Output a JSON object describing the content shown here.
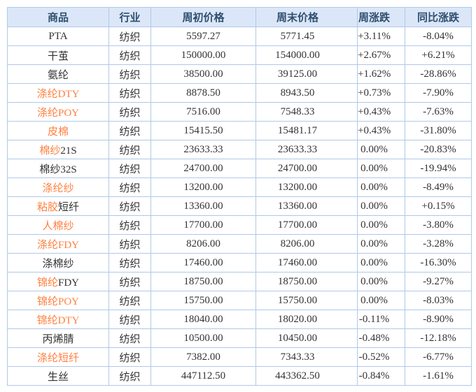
{
  "colors": {
    "up_red": "#e60000",
    "down_green": "#008800",
    "flat_text": "#333333",
    "product_link_orange": "#ff8040",
    "header_text": "#2f4f6f",
    "header_bg": "#dbe7f8",
    "grid_border": "#b0c9e8"
  },
  "table": {
    "columns": [
      {
        "label": "商品"
      },
      {
        "label": "行业"
      },
      {
        "label": "周初价格"
      },
      {
        "label": "周末价格"
      },
      {
        "label": "周涨跌"
      },
      {
        "label": "同比涨跌"
      }
    ],
    "rows": [
      {
        "name": [
          {
            "text": "PTA",
            "style": "plain"
          }
        ],
        "industry": "纺织",
        "start": "5597.27",
        "end": "5771.45",
        "week": {
          "text": "+3.11%",
          "style": "up"
        },
        "yoy": {
          "text": "-8.04%",
          "style": "down"
        }
      },
      {
        "name": [
          {
            "text": "干茧",
            "style": "plain"
          }
        ],
        "industry": "纺织",
        "start": "150000.00",
        "end": "154000.00",
        "week": {
          "text": "+2.67%",
          "style": "up"
        },
        "yoy": {
          "text": "+6.21%",
          "style": "up"
        }
      },
      {
        "name": [
          {
            "text": "氨纶",
            "style": "plain"
          }
        ],
        "industry": "纺织",
        "start": "38500.00",
        "end": "39125.00",
        "week": {
          "text": "+1.62%",
          "style": "up"
        },
        "yoy": {
          "text": "-28.86%",
          "style": "down"
        }
      },
      {
        "name": [
          {
            "text": "涤纶DTY",
            "style": "link"
          }
        ],
        "industry": "纺织",
        "start": "8878.50",
        "end": "8943.50",
        "week": {
          "text": "+0.73%",
          "style": "up"
        },
        "yoy": {
          "text": "-7.90%",
          "style": "down"
        }
      },
      {
        "name": [
          {
            "text": "涤纶POY",
            "style": "link"
          }
        ],
        "industry": "纺织",
        "start": "7516.00",
        "end": "7548.33",
        "week": {
          "text": "+0.43%",
          "style": "up"
        },
        "yoy": {
          "text": "-7.63%",
          "style": "down"
        }
      },
      {
        "name": [
          {
            "text": "皮棉",
            "style": "link"
          }
        ],
        "industry": "纺织",
        "start": "15415.50",
        "end": "15481.17",
        "week": {
          "text": "+0.43%",
          "style": "up"
        },
        "yoy": {
          "text": "-31.80%",
          "style": "down"
        }
      },
      {
        "name": [
          {
            "text": "棉纱",
            "style": "link"
          },
          {
            "text": "21S",
            "style": "plain"
          }
        ],
        "industry": "纺织",
        "start": "23633.33",
        "end": "23633.33",
        "week": {
          "text": "0.00%",
          "style": "flat"
        },
        "yoy": {
          "text": "-20.83%",
          "style": "down"
        }
      },
      {
        "name": [
          {
            "text": "棉纱32S",
            "style": "plain"
          }
        ],
        "industry": "纺织",
        "start": "24700.00",
        "end": "24700.00",
        "week": {
          "text": "0.00%",
          "style": "flat"
        },
        "yoy": {
          "text": "-19.94%",
          "style": "down"
        }
      },
      {
        "name": [
          {
            "text": "涤纶纱",
            "style": "link"
          }
        ],
        "industry": "纺织",
        "start": "13200.00",
        "end": "13200.00",
        "week": {
          "text": "0.00%",
          "style": "flat"
        },
        "yoy": {
          "text": "-8.49%",
          "style": "down"
        }
      },
      {
        "name": [
          {
            "text": "粘胶",
            "style": "link"
          },
          {
            "text": "短纤",
            "style": "plain"
          }
        ],
        "industry": "纺织",
        "start": "13360.00",
        "end": "13360.00",
        "week": {
          "text": "0.00%",
          "style": "flat"
        },
        "yoy": {
          "text": "+0.15%",
          "style": "up"
        }
      },
      {
        "name": [
          {
            "text": "人棉纱",
            "style": "link"
          }
        ],
        "industry": "纺织",
        "start": "17700.00",
        "end": "17700.00",
        "week": {
          "text": "0.00%",
          "style": "flat"
        },
        "yoy": {
          "text": "-3.80%",
          "style": "down"
        }
      },
      {
        "name": [
          {
            "text": "涤纶FDY",
            "style": "link"
          }
        ],
        "industry": "纺织",
        "start": "8206.00",
        "end": "8206.00",
        "week": {
          "text": "0.00%",
          "style": "flat"
        },
        "yoy": {
          "text": "-3.28%",
          "style": "down"
        }
      },
      {
        "name": [
          {
            "text": "涤棉纱",
            "style": "plain"
          }
        ],
        "industry": "纺织",
        "start": "17460.00",
        "end": "17460.00",
        "week": {
          "text": "0.00%",
          "style": "flat"
        },
        "yoy": {
          "text": "-16.30%",
          "style": "down"
        }
      },
      {
        "name": [
          {
            "text": "锦纶",
            "style": "link"
          },
          {
            "text": "FDY",
            "style": "plain"
          }
        ],
        "industry": "纺织",
        "start": "18750.00",
        "end": "18750.00",
        "week": {
          "text": "0.00%",
          "style": "flat"
        },
        "yoy": {
          "text": "-9.27%",
          "style": "down"
        }
      },
      {
        "name": [
          {
            "text": "锦纶POY",
            "style": "link"
          }
        ],
        "industry": "纺织",
        "start": "15750.00",
        "end": "15750.00",
        "week": {
          "text": "0.00%",
          "style": "flat"
        },
        "yoy": {
          "text": "-8.03%",
          "style": "down"
        }
      },
      {
        "name": [
          {
            "text": "锦纶DTY",
            "style": "link"
          }
        ],
        "industry": "纺织",
        "start": "18040.00",
        "end": "18020.00",
        "week": {
          "text": "-0.11%",
          "style": "down"
        },
        "yoy": {
          "text": "-8.90%",
          "style": "down"
        }
      },
      {
        "name": [
          {
            "text": "丙烯腈",
            "style": "plain"
          }
        ],
        "industry": "纺织",
        "start": "10500.00",
        "end": "10450.00",
        "week": {
          "text": "-0.48%",
          "style": "down"
        },
        "yoy": {
          "text": "-12.18%",
          "style": "down"
        }
      },
      {
        "name": [
          {
            "text": "涤纶短纤",
            "style": "link"
          }
        ],
        "industry": "纺织",
        "start": "7382.00",
        "end": "7343.33",
        "week": {
          "text": "-0.52%",
          "style": "down"
        },
        "yoy": {
          "text": "-6.77%",
          "style": "down"
        }
      },
      {
        "name": [
          {
            "text": "生丝",
            "style": "plain"
          }
        ],
        "industry": "纺织",
        "start": "447112.50",
        "end": "443362.50",
        "week": {
          "text": "-0.84%",
          "style": "down"
        },
        "yoy": {
          "text": "-1.61%",
          "style": "down"
        }
      }
    ]
  }
}
